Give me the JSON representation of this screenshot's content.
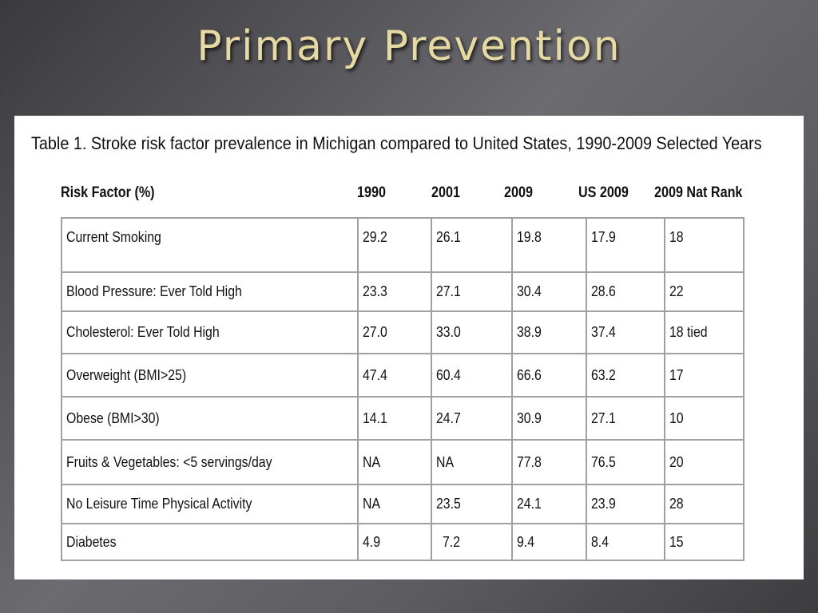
{
  "slide": {
    "title": "Primary Prevention"
  },
  "table": {
    "caption": "Table 1.  Stroke risk factor prevalence in Michigan compared to United States, 1990-2009 Selected Years",
    "headers": [
      "Risk Factor (%)",
      "1990",
      "2001",
      "2009",
      "US 2009",
      "2009 Nat Rank"
    ],
    "rows": [
      [
        "Current Smoking",
        "29.2",
        "26.1",
        "19.8",
        "17.9",
        "18"
      ],
      [
        "Blood Pressure: Ever Told High",
        "23.3",
        "27.1",
        "30.4",
        "28.6",
        "22"
      ],
      [
        "Cholesterol: Ever Told High",
        "27.0",
        "33.0",
        "38.9",
        "37.4",
        "18 tied"
      ],
      [
        "Overweight (BMI>25)",
        "47.4",
        "60.4",
        "66.6",
        "63.2",
        "17"
      ],
      [
        "Obese (BMI>30)",
        "14.1",
        "24.7",
        "30.9",
        "27.1",
        "10"
      ],
      [
        "Fruits & Vegetables: <5 servings/day",
        "NA",
        "NA",
        "77.8",
        "76.5",
        "20"
      ],
      [
        "No Leisure Time Physical Activity",
        "NA",
        "23.5",
        "24.1",
        "23.9",
        "28"
      ],
      [
        "Diabetes",
        "4.9",
        "7.2",
        "9.4",
        "8.4",
        "15"
      ]
    ]
  }
}
